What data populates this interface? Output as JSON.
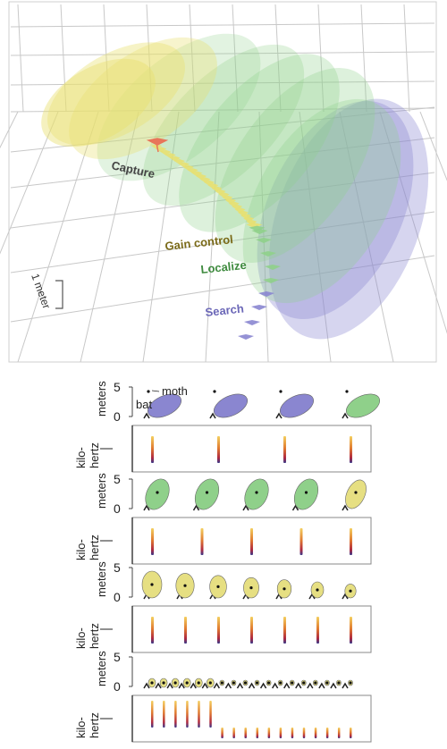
{
  "top_panel": {
    "phase_labels": {
      "capture": "Capture",
      "gain_control": "Gain control",
      "localize": "Localize",
      "search": "Search"
    },
    "scale_label": "1 meter",
    "colors": {
      "capture": "#e8765a",
      "gain": "#e8e070",
      "localize": "#8fd08a",
      "search": "#8a86d0",
      "grid": "#c8c8c8"
    }
  },
  "rows": [
    {
      "y_axis": "meters",
      "y_ticks": [
        "5",
        "0"
      ],
      "freq_axis": [
        "kilo-",
        "hertz"
      ],
      "annotations": {
        "moth": "moth",
        "bat": "bat"
      },
      "beams": [
        {
          "color": "#8a86d0"
        },
        {
          "color": "#8a86d0"
        },
        {
          "color": "#8a86d0"
        },
        {
          "color": "#8fd08a"
        }
      ]
    },
    {
      "y_axis": "meters",
      "y_ticks": [
        "5",
        "0"
      ],
      "freq_axis": [
        "kilo-",
        "hertz"
      ],
      "beams": [
        {
          "color": "#8fd08a"
        },
        {
          "color": "#8fd08a"
        },
        {
          "color": "#8fd08a"
        },
        {
          "color": "#8fd08a"
        },
        {
          "color": "#e6df82"
        }
      ]
    },
    {
      "y_axis": "meters",
      "y_ticks": [
        "5",
        "0"
      ],
      "freq_axis": [
        "kilo-",
        "hertz"
      ],
      "beams": [
        {
          "color": "#e6df82"
        },
        {
          "color": "#e6df82"
        },
        {
          "color": "#e6df82"
        },
        {
          "color": "#e6df82"
        },
        {
          "color": "#e6df82"
        },
        {
          "color": "#e6df82"
        },
        {
          "color": "#e6df82"
        }
      ]
    },
    {
      "y_axis": "meters",
      "y_ticks": [
        "5",
        "0"
      ],
      "freq_axis": [
        "kilo-",
        "hertz"
      ],
      "beams": [
        {
          "color": "#e6df82"
        },
        {
          "color": "#e6df82"
        },
        {
          "color": "#e6df82"
        },
        {
          "color": "#e6df82"
        },
        {
          "color": "#e6df82"
        },
        {
          "color": "#e6df82"
        },
        {
          "color": "#e6df82"
        },
        {
          "color": "#e6df82"
        },
        {
          "color": "#e6df82"
        },
        {
          "color": "#e6df82"
        },
        {
          "color": "#e6df82"
        },
        {
          "color": "#e6df82"
        },
        {
          "color": "#e6df82"
        },
        {
          "color": "#e6df82"
        },
        {
          "color": "#e6df82"
        },
        {
          "color": "#e6df82"
        },
        {
          "color": "#e6df82"
        },
        {
          "color": "#e6df82"
        }
      ]
    }
  ]
}
